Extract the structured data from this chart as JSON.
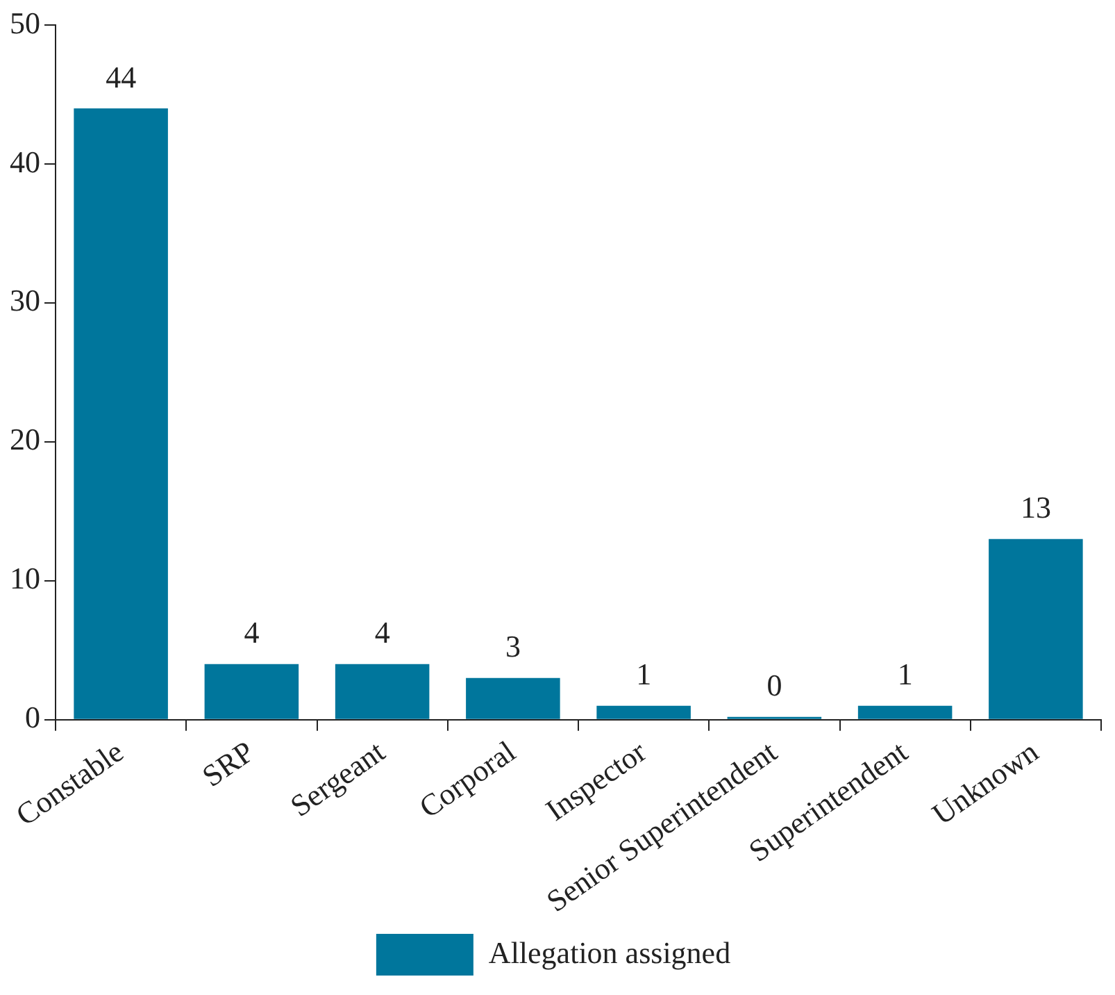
{
  "chart_data": {
    "type": "bar",
    "categories": [
      "Constable",
      "SRP",
      "Sergeant",
      "Corporal",
      "Inspector",
      "Senior Superintendent",
      "Superintendent",
      "Unknown"
    ],
    "series": [
      {
        "name": "Allegation assigned",
        "color": "#00769c",
        "values": [
          44,
          4,
          4,
          3,
          1,
          0,
          1,
          13
        ]
      }
    ],
    "ylim": [
      0,
      50
    ],
    "yticks": [
      0,
      10,
      20,
      30,
      40,
      50
    ],
    "grid": false,
    "legend": "bottom",
    "data_labels": true
  }
}
